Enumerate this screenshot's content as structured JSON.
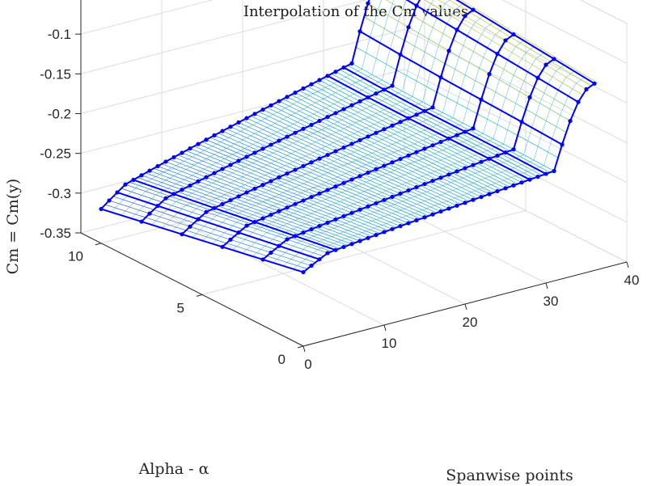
{
  "chart_data": {
    "type": "surface3d",
    "title": "Interpolation of the Cm values",
    "xlabel": "Spanwise points",
    "ylabel": "Alpha - α",
    "zlabel": "Cm = Cm(y)",
    "xlim": [
      0,
      40
    ],
    "ylim": [
      0,
      11
    ],
    "zlim": [
      -0.35,
      -0.05
    ],
    "xticks": [
      "0",
      "10",
      "20",
      "30",
      "40"
    ],
    "yticks": [
      "0",
      "5",
      "10"
    ],
    "zticks": [
      "-0.05",
      "-0.1",
      "-0.15",
      "-0.2",
      "-0.25",
      "-0.3",
      "-0.35"
    ],
    "grid": true,
    "colormap": "parula",
    "marker_color": "#0000ff",
    "spanwise_points": 37,
    "series": [
      {
        "alpha": 0,
        "x_start": 0,
        "z_start": -0.245,
        "z_end": -0.207,
        "tip_z": -0.115
      },
      {
        "alpha": 2,
        "x_start": 0,
        "z_start": -0.255,
        "z_end": -0.204,
        "tip_z": -0.11
      },
      {
        "alpha": 4,
        "x_start": 0,
        "z_start": -0.265,
        "z_end": -0.202,
        "tip_z": -0.105
      },
      {
        "alpha": 6,
        "x_start": 0,
        "z_start": -0.275,
        "z_end": -0.2,
        "tip_z": -0.1
      },
      {
        "alpha": 8,
        "x_start": 0,
        "z_start": -0.285,
        "z_end": -0.197,
        "tip_z": -0.095
      },
      {
        "alpha": 10,
        "x_start": 0,
        "z_start": -0.295,
        "z_end": -0.193,
        "tip_z": -0.09
      }
    ],
    "back_ridge_z": [
      -0.245,
      -0.246,
      -0.243,
      -0.25,
      -0.258,
      -0.263
    ]
  }
}
